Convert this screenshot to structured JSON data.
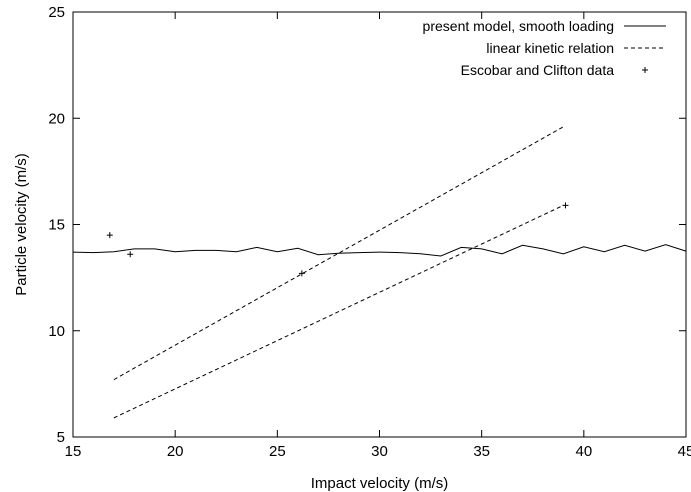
{
  "chart_data": {
    "type": "line",
    "xlabel": "Impact velocity (m/s)",
    "ylabel": "Particle velocity (m/s)",
    "xlim": [
      15,
      45
    ],
    "ylim": [
      5,
      25
    ],
    "xticks": [
      "15",
      "20",
      "25",
      "30",
      "35",
      "40",
      "45"
    ],
    "yticks": [
      "5",
      "10",
      "15",
      "20",
      "25"
    ],
    "grid": false,
    "legend_position": "top-right",
    "series": [
      {
        "name": "present model, smooth loading",
        "style": "solid",
        "points": [
          [
            15,
            13.7
          ],
          [
            16,
            13.68
          ],
          [
            17,
            13.72
          ],
          [
            18,
            13.85
          ],
          [
            19,
            13.85
          ],
          [
            20,
            13.72
          ],
          [
            21,
            13.78
          ],
          [
            22,
            13.78
          ],
          [
            23,
            13.72
          ],
          [
            24,
            13.92
          ],
          [
            25,
            13.72
          ],
          [
            26,
            13.88
          ],
          [
            27,
            13.58
          ],
          [
            28,
            13.65
          ],
          [
            29,
            13.68
          ],
          [
            30,
            13.7
          ],
          [
            31,
            13.68
          ],
          [
            32,
            13.62
          ],
          [
            33,
            13.52
          ],
          [
            34,
            13.92
          ],
          [
            35,
            13.85
          ],
          [
            36,
            13.62
          ],
          [
            37,
            14.02
          ],
          [
            38,
            13.85
          ],
          [
            39,
            13.62
          ],
          [
            40,
            13.95
          ],
          [
            41,
            13.72
          ],
          [
            42,
            14.02
          ],
          [
            43,
            13.75
          ],
          [
            44,
            14.05
          ],
          [
            45,
            13.75
          ]
        ]
      },
      {
        "name": "linear kinetic relation",
        "style": "dashed",
        "lines": [
          [
            [
              17,
              7.7
            ],
            [
              39,
              19.6
            ]
          ],
          [
            [
              17,
              5.9
            ],
            [
              39,
              15.9
            ]
          ]
        ]
      },
      {
        "name": "Escobar and Clifton data",
        "style": "points",
        "points": [
          [
            16.8,
            14.5
          ],
          [
            17.8,
            13.6
          ],
          [
            26.2,
            12.7
          ],
          [
            39.1,
            15.9
          ]
        ]
      }
    ]
  }
}
